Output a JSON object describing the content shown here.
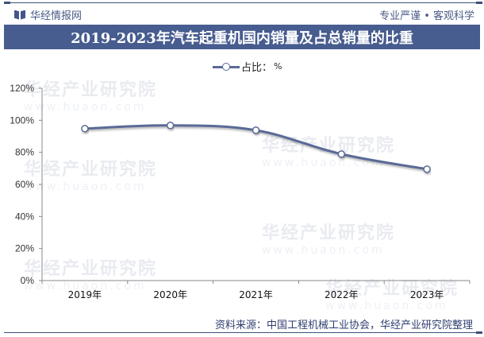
{
  "header": {
    "brand": "华经情报网",
    "slogan": "专业严谨 • 客观科学",
    "title": "2019-2023年汽车起重机国内销量及占总销量的比重"
  },
  "legend": {
    "label": "占比：",
    "unit": "%"
  },
  "watermark": {
    "text": "华经产业研究院",
    "url": "www.huaon.com"
  },
  "footer": {
    "source": "资料来源：中国工程机械工业协会，华经产业研究院整理"
  },
  "colors": {
    "title_bar": "#475c8f",
    "line": "#5a6a96",
    "brand_text": "#4a5a86"
  },
  "chart_data": {
    "type": "line",
    "title": "2019-2023年汽车起重机国内销量及占总销量的比重",
    "categories": [
      "2019年",
      "2020年",
      "2021年",
      "2022年",
      "2023年"
    ],
    "series": [
      {
        "name": "占比：%",
        "values": [
          94.8,
          96.8,
          93.8,
          78.9,
          69.5
        ]
      }
    ],
    "xlabel": "",
    "ylabel": "",
    "ylim": [
      0,
      120
    ],
    "yticks": [
      "0%",
      "20%",
      "40%",
      "60%",
      "80%",
      "100%",
      "120%"
    ],
    "grid": false,
    "legend_position": "top",
    "smooth": true
  }
}
